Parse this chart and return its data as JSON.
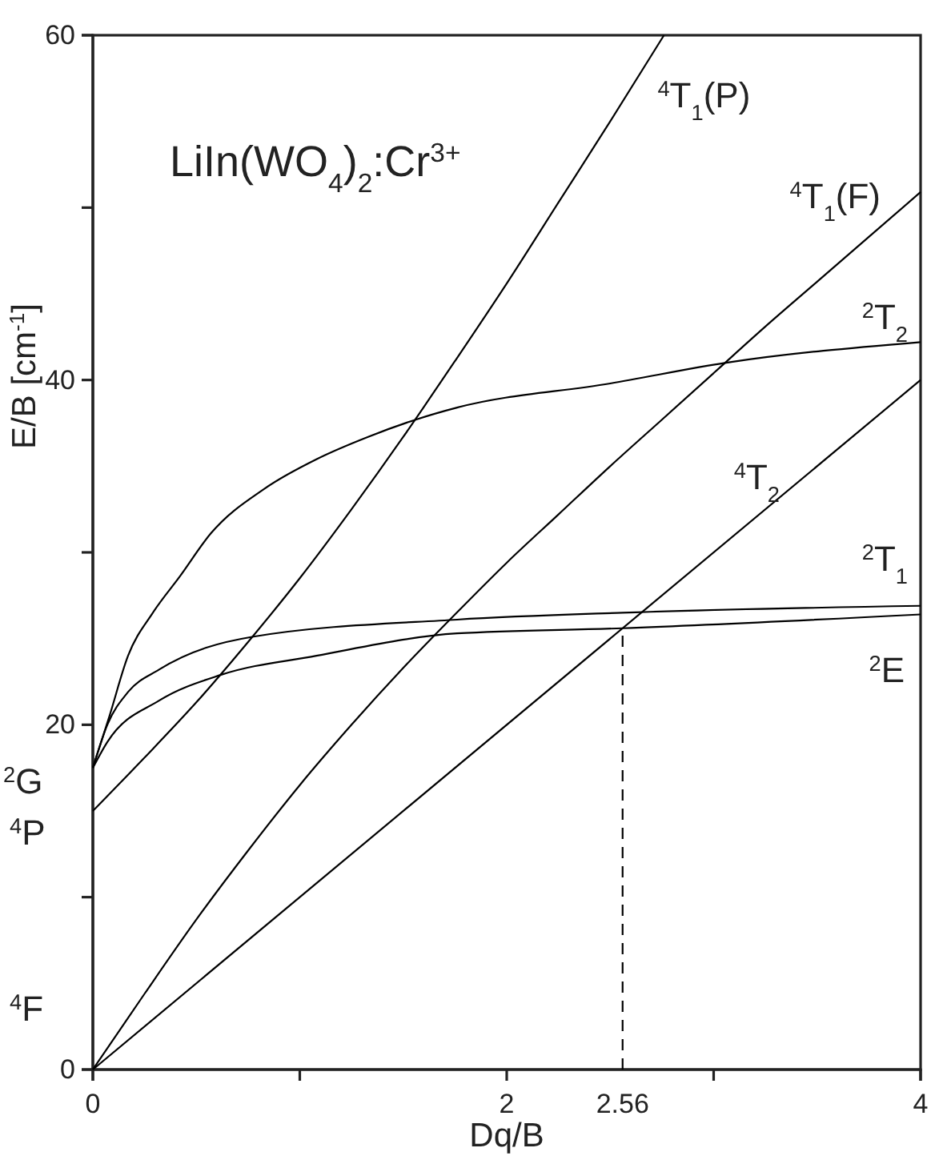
{
  "chart_data": {
    "type": "line",
    "title": "LiIn(WO$_{4}$)$_{2}$:Cr$^{3+}$",
    "xlabel": "Dq/B",
    "ylabel": "E/B [cm$^{-1}$]",
    "xlim": [
      0,
      4
    ],
    "xticks": [
      0,
      {
        "value": 1,
        "label": null
      },
      2,
      {
        "value": 2.56,
        "label": "2.56"
      },
      {
        "value": 3,
        "label": null
      },
      4
    ],
    "ylim": [
      0,
      60
    ],
    "yticks": [
      0,
      {
        "value": 10,
        "label": null
      },
      20,
      {
        "value": 30,
        "label": null
      },
      40,
      {
        "value": 50,
        "label": null
      },
      60
    ],
    "series": [
      {
        "name": "$^{4}$T$_{1}$(P)",
        "color": "#000000",
        "x": [
          0,
          0.25,
          0.5,
          0.75,
          1,
          1.25,
          1.5,
          1.75,
          2,
          2.25,
          2.5,
          2.76
        ],
        "values": [
          15,
          18.1,
          21.3,
          24.8,
          28.5,
          32.5,
          36.7,
          41.1,
          45.6,
          50.3,
          55,
          60
        ]
      },
      {
        "name": "$^{4}$T$_{1}$(F)",
        "color": "#000000",
        "x": [
          0,
          0.25,
          0.5,
          0.75,
          1,
          1.25,
          1.5,
          1.75,
          2,
          2.25,
          2.5,
          2.75,
          3,
          3.25,
          3.5,
          3.75,
          4
        ],
        "values": [
          0,
          4.4,
          8.7,
          12.7,
          16.5,
          20,
          23.3,
          26.4,
          29.4,
          32.2,
          35,
          37.7,
          40.4,
          43.1,
          45.7,
          48.3,
          50.9
        ]
      },
      {
        "name": "$^{2}$T$_{2}$",
        "color": "#000000",
        "x": [
          0,
          0.08,
          0.17,
          0.29,
          0.42,
          0.57,
          0.83,
          1.08,
          1.33,
          1.56,
          1.76,
          2.5,
          3.06,
          4
        ],
        "values": [
          17.5,
          20.5,
          24,
          26.5,
          28.6,
          31.1,
          33.7,
          35.4,
          36.7,
          37.7,
          38.4,
          39.8,
          41,
          42.2
        ]
      },
      {
        "name": "$^{4}$T$_{2}$",
        "color": "#000000",
        "x": [
          0,
          4
        ],
        "values": [
          0,
          40
        ]
      },
      {
        "name": "$^{2}$T$_{1}$",
        "color": "#000000",
        "x": [
          0,
          0.07,
          0.17,
          0.32,
          0.77,
          1.76,
          2.56,
          4
        ],
        "values": [
          17.5,
          20,
          21.9,
          23.2,
          25.1,
          26.1,
          26.5,
          26.9
        ]
      },
      {
        "name": "$^{2}$E",
        "color": "#000000",
        "x": [
          0,
          0.07,
          0.32,
          0.62,
          1.08,
          1.76,
          2.56,
          4
        ],
        "values": [
          17.5,
          19,
          21.4,
          22.9,
          24,
          25.3,
          25.6,
          26.4
        ]
      },
      {
        "color": "#000000",
        "line_style": "dashed",
        "x": [
          2.56,
          2.56
        ],
        "values": [
          0,
          25.6
        ]
      }
    ],
    "annotations": [
      "$^{2}$G",
      "$^{4}$P",
      "$^{4}$F"
    ]
  }
}
